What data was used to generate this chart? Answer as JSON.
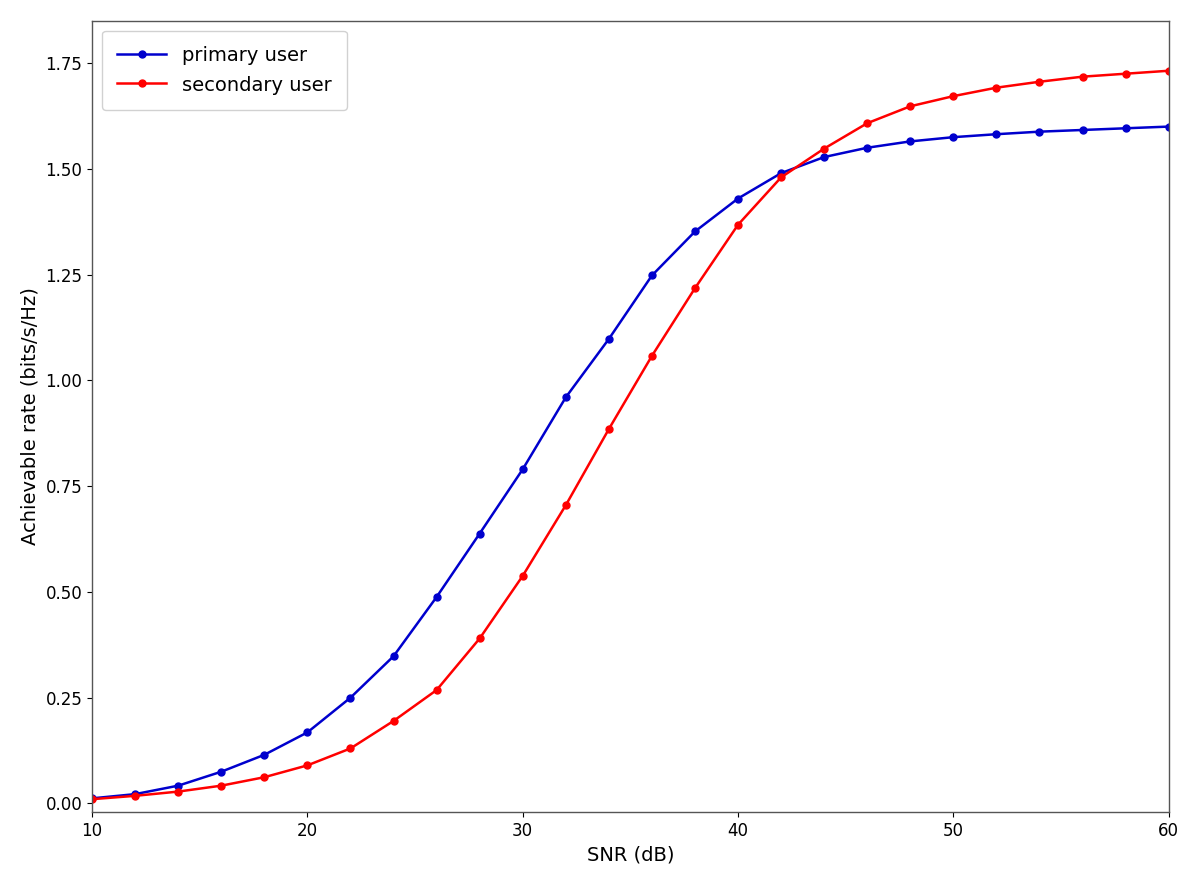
{
  "title": "",
  "xlabel": "SNR (dB)",
  "ylabel": "Achievable rate (bits/s/Hz)",
  "xlim": [
    10,
    60
  ],
  "ylim": [
    -0.02,
    1.85
  ],
  "primary_color": "#0000cd",
  "secondary_color": "#ff0000",
  "primary_label": "primary user",
  "secondary_label": "secondary user",
  "snr_points": [
    10,
    12,
    14,
    16,
    18,
    20,
    22,
    24,
    26,
    28,
    30,
    32,
    34,
    36,
    38,
    40,
    42,
    44,
    46,
    48,
    50,
    52,
    54,
    56,
    58,
    60
  ],
  "primary_values": [
    0.012,
    0.022,
    0.042,
    0.075,
    0.115,
    0.168,
    0.25,
    0.348,
    0.488,
    0.638,
    0.79,
    0.96,
    1.098,
    1.248,
    1.352,
    1.43,
    1.49,
    1.528,
    1.55,
    1.565,
    1.575,
    1.582,
    1.588,
    1.592,
    1.596,
    1.6
  ],
  "secondary_values": [
    0.01,
    0.018,
    0.028,
    0.042,
    0.062,
    0.09,
    0.13,
    0.195,
    0.268,
    0.39,
    0.538,
    0.705,
    0.885,
    1.058,
    1.218,
    1.368,
    1.48,
    1.548,
    1.608,
    1.648,
    1.672,
    1.692,
    1.706,
    1.718,
    1.725,
    1.732
  ],
  "yticks": [
    0.0,
    0.25,
    0.5,
    0.75,
    1.0,
    1.25,
    1.5,
    1.75
  ],
  "xticks": [
    10,
    20,
    30,
    40,
    50,
    60
  ],
  "figsize": [
    12.0,
    8.85
  ],
  "dpi": 100,
  "legend_fontsize": 14,
  "axis_label_fontsize": 14,
  "tick_labelsize": 12,
  "marker_size": 5,
  "line_width": 1.8,
  "spine_color": "#555555",
  "spine_linewidth": 1.0
}
